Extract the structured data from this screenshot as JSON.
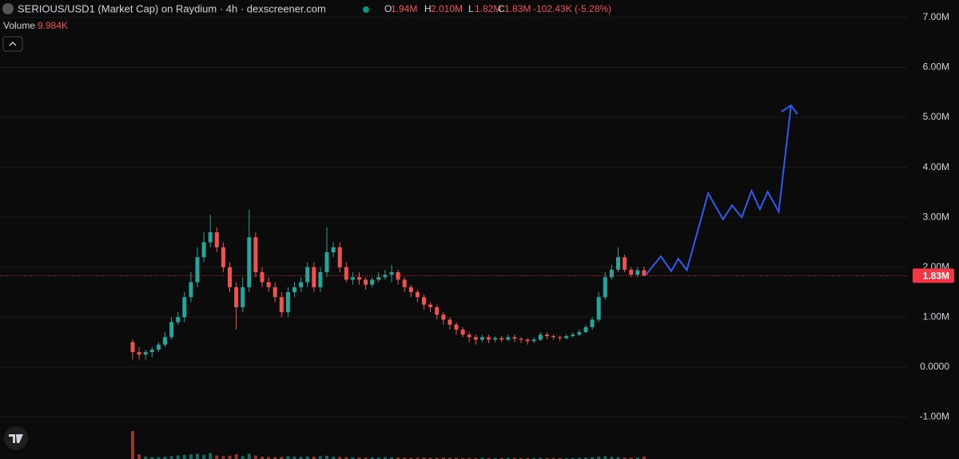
{
  "chart_data": {
    "type": "candlestick",
    "title": "SERIOUS/USD1 (Market Cap) on Raydium · 4h · dexscreener.com",
    "legend": {
      "labels": [
        "O",
        "H",
        "L",
        "C"
      ],
      "values": [
        "1.94M",
        "2.010M",
        "1.82M",
        "1.83M"
      ],
      "change": "-102.43K (-5.28%)"
    },
    "volume_label": "Volume",
    "volume_value": "9.984K",
    "up_color": "#26a69a",
    "down_color": "#ef5350",
    "open": [
      0.5,
      0.3,
      0.25,
      0.3,
      0.35,
      0.45,
      0.6,
      0.9,
      1.0,
      1.4,
      1.7,
      2.2,
      2.5,
      2.7,
      2.4,
      2.0,
      1.6,
      1.2,
      1.6,
      2.6,
      1.9,
      1.7,
      1.6,
      1.4,
      1.1,
      1.5,
      1.6,
      1.7,
      2.0,
      1.6,
      1.9,
      2.3,
      2.4,
      2.0,
      1.75,
      1.8,
      1.75,
      1.65,
      1.75,
      1.8,
      1.85,
      1.9,
      1.75,
      1.6,
      1.5,
      1.4,
      1.25,
      1.2,
      1.05,
      0.95,
      0.85,
      0.75,
      0.65,
      0.6,
      0.55,
      0.6,
      0.55,
      0.58,
      0.55,
      0.6,
      0.57,
      0.55,
      0.52,
      0.55,
      0.65,
      0.62,
      0.6,
      0.58,
      0.62,
      0.65,
      0.7,
      0.8,
      0.95,
      1.4,
      1.8,
      1.95,
      2.2,
      1.95,
      1.85,
      1.94
    ],
    "high": [
      0.55,
      0.4,
      0.35,
      0.4,
      0.5,
      0.7,
      1.0,
      1.1,
      1.5,
      1.9,
      2.4,
      2.7,
      3.05,
      2.8,
      2.5,
      2.1,
      1.7,
      1.8,
      3.15,
      2.7,
      2.0,
      1.8,
      1.7,
      1.5,
      1.6,
      1.7,
      1.8,
      2.1,
      2.1,
      2.0,
      2.8,
      2.5,
      2.5,
      2.1,
      1.9,
      1.9,
      1.8,
      1.8,
      1.9,
      1.95,
      2.05,
      1.95,
      1.8,
      1.65,
      1.55,
      1.45,
      1.3,
      1.25,
      1.1,
      1.0,
      0.9,
      0.8,
      0.7,
      0.65,
      0.65,
      0.65,
      0.62,
      0.62,
      0.65,
      0.65,
      0.6,
      0.58,
      0.6,
      0.7,
      0.7,
      0.65,
      0.63,
      0.66,
      0.7,
      0.75,
      0.85,
      1.0,
      1.5,
      1.9,
      2.05,
      2.4,
      2.25,
      2.0,
      2.0,
      2.01
    ],
    "low": [
      0.15,
      0.15,
      0.15,
      0.2,
      0.3,
      0.4,
      0.55,
      0.85,
      0.9,
      1.3,
      1.6,
      2.1,
      2.4,
      2.3,
      1.9,
      1.5,
      0.75,
      1.1,
      1.5,
      1.8,
      1.6,
      1.5,
      1.3,
      1.0,
      1.0,
      1.4,
      1.5,
      1.6,
      1.5,
      1.5,
      1.8,
      2.2,
      1.9,
      1.7,
      1.65,
      1.65,
      1.55,
      1.6,
      1.7,
      1.75,
      1.7,
      1.65,
      1.5,
      1.4,
      1.3,
      1.15,
      1.1,
      0.95,
      0.85,
      0.75,
      0.65,
      0.6,
      0.5,
      0.45,
      0.5,
      0.48,
      0.5,
      0.5,
      0.52,
      0.5,
      0.48,
      0.45,
      0.48,
      0.52,
      0.55,
      0.55,
      0.52,
      0.55,
      0.6,
      0.62,
      0.68,
      0.75,
      0.9,
      1.35,
      1.75,
      1.9,
      1.9,
      1.8,
      1.8,
      1.82
    ],
    "close": [
      0.3,
      0.25,
      0.3,
      0.35,
      0.45,
      0.6,
      0.9,
      1.0,
      1.4,
      1.7,
      2.2,
      2.5,
      2.7,
      2.4,
      2.0,
      1.6,
      1.2,
      1.6,
      2.6,
      1.9,
      1.7,
      1.6,
      1.4,
      1.1,
      1.5,
      1.6,
      1.7,
      2.0,
      1.6,
      1.9,
      2.3,
      2.4,
      2.0,
      1.75,
      1.8,
      1.75,
      1.65,
      1.75,
      1.8,
      1.85,
      1.9,
      1.75,
      1.6,
      1.5,
      1.4,
      1.25,
      1.2,
      1.05,
      0.95,
      0.85,
      0.75,
      0.65,
      0.6,
      0.55,
      0.6,
      0.55,
      0.58,
      0.55,
      0.6,
      0.57,
      0.55,
      0.52,
      0.55,
      0.65,
      0.62,
      0.6,
      0.58,
      0.62,
      0.65,
      0.7,
      0.8,
      0.95,
      1.4,
      1.8,
      1.95,
      2.2,
      1.95,
      1.85,
      1.94,
      1.83
    ],
    "volume": [
      120,
      20,
      10,
      8,
      8,
      10,
      12,
      15,
      18,
      20,
      22,
      18,
      25,
      15,
      12,
      14,
      20,
      12,
      22,
      15,
      10,
      9,
      8,
      9,
      12,
      10,
      9,
      11,
      10,
      12,
      14,
      10,
      9,
      8,
      7,
      7,
      6,
      7,
      6,
      8,
      7,
      6,
      6,
      5,
      5,
      6,
      5,
      5,
      6,
      5,
      5,
      4,
      4,
      4,
      5,
      4,
      4,
      4,
      5,
      4,
      4,
      4,
      4,
      5,
      4,
      4,
      4,
      4,
      4,
      5,
      6,
      7,
      10,
      12,
      9,
      8,
      6,
      5,
      6,
      9.984
    ],
    "ylim": [
      -1.84,
      7.35
    ],
    "yticks": [
      {
        "value": 7,
        "label": "7.00M"
      },
      {
        "value": 6,
        "label": "6.00M"
      },
      {
        "value": 5,
        "label": "5.00M"
      },
      {
        "value": 4,
        "label": "4.00M"
      },
      {
        "value": 3,
        "label": "3.00M"
      },
      {
        "value": 2,
        "label": "2.00M"
      },
      {
        "value": 1,
        "label": "1.00M"
      },
      {
        "value": 0,
        "label": "0.0000"
      },
      {
        "value": -1,
        "label": "-1.00M"
      }
    ],
    "grid": true,
    "price_line": {
      "value": 1.83,
      "label": "1.83M",
      "color": "#f23645"
    },
    "projection": {
      "color": "#2f5cf0",
      "x": [
        79.3,
        81.6,
        83.2,
        84.3,
        85.6,
        88.9,
        91.2,
        92.6,
        94.1,
        95.6,
        96.9,
        98.1,
        99.8,
        101.7
      ],
      "values": [
        1.85,
        2.22,
        1.92,
        2.17,
        1.94,
        3.48,
        2.96,
        3.24,
        3.0,
        3.53,
        3.16,
        3.51,
        3.11,
        5.24
      ]
    }
  }
}
